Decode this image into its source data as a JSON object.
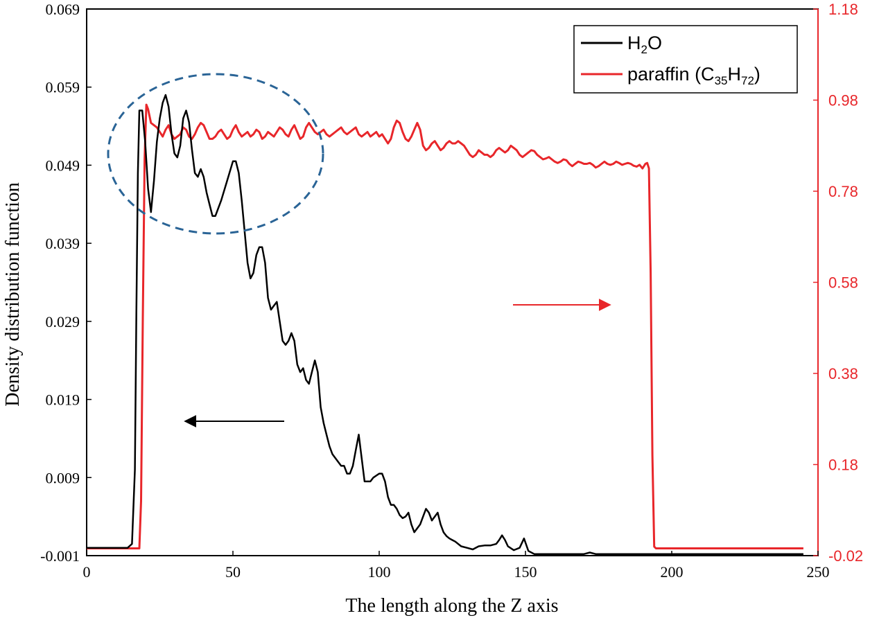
{
  "chart_data": {
    "type": "line",
    "xlabel": "The length along the Z axis",
    "ylabel": "Density distribution function",
    "xlim": [
      0,
      250
    ],
    "ylim_left": [
      -0.001,
      0.069
    ],
    "ylim_right": [
      -0.02,
      1.18
    ],
    "x_ticks": [
      "0",
      "50",
      "100",
      "150",
      "200",
      "250"
    ],
    "y_ticks_left": [
      "-0.001",
      "0.009",
      "0.019",
      "0.029",
      "0.039",
      "0.049",
      "0.059",
      "0.069"
    ],
    "y_ticks_right": [
      "-0.02",
      "0.18",
      "0.38",
      "0.58",
      "0.78",
      "0.98",
      "1.18"
    ],
    "legend": {
      "position": "top-right",
      "h2o": {
        "main1": "H",
        "sub1": "2",
        "main2": "O"
      },
      "paraffin": {
        "main1": "paraffin (C",
        "sub1": "35",
        "main2": "H",
        "sub2": "72",
        "main3": ")"
      }
    },
    "series": [
      {
        "name": "H2O",
        "axis": "left",
        "color": "#000000",
        "x": [
          0,
          5,
          10,
          14,
          15.5,
          16.5,
          17,
          17.5,
          18,
          19,
          20,
          21,
          22,
          23,
          24,
          25,
          26,
          27,
          28,
          29,
          30,
          31,
          32,
          33,
          34,
          35,
          36,
          37,
          38,
          39,
          40,
          41,
          42,
          43,
          44,
          45,
          46,
          48,
          50,
          51,
          52,
          53,
          54,
          55,
          56,
          57,
          58,
          59,
          60,
          61,
          62,
          63,
          64,
          65,
          66,
          67,
          68,
          69,
          70,
          71,
          72,
          73,
          74,
          75,
          76,
          77,
          78,
          79,
          80,
          81,
          82,
          83,
          84,
          85,
          86,
          87,
          88,
          89,
          90,
          91,
          92,
          93,
          94,
          95,
          96,
          97,
          98,
          100,
          101,
          102,
          103,
          104,
          105,
          106,
          107,
          108,
          109,
          110,
          111,
          112,
          113,
          114,
          115,
          116,
          117,
          118,
          119,
          120,
          121,
          122,
          123,
          124,
          125,
          126,
          128,
          130,
          132,
          134,
          136,
          138,
          140,
          141,
          142,
          143,
          144,
          146,
          148,
          149.5,
          151,
          153,
          156,
          160,
          165,
          170,
          172,
          174,
          180,
          190,
          200,
          210,
          220,
          230,
          245
        ],
        "values": [
          0.0,
          0.0,
          0.0,
          0.0,
          0.0005,
          0.01,
          0.03,
          0.048,
          0.056,
          0.056,
          0.052,
          0.046,
          0.043,
          0.047,
          0.052,
          0.055,
          0.057,
          0.058,
          0.0565,
          0.053,
          0.0505,
          0.05,
          0.0515,
          0.055,
          0.056,
          0.0545,
          0.051,
          0.048,
          0.0475,
          0.0485,
          0.0475,
          0.0455,
          0.044,
          0.0425,
          0.0425,
          0.0435,
          0.0445,
          0.047,
          0.0495,
          0.0495,
          0.048,
          0.0445,
          0.0405,
          0.0365,
          0.0345,
          0.0352,
          0.0375,
          0.0385,
          0.0385,
          0.0365,
          0.032,
          0.0305,
          0.031,
          0.0315,
          0.029,
          0.0265,
          0.026,
          0.0265,
          0.0275,
          0.0265,
          0.0235,
          0.0225,
          0.023,
          0.0215,
          0.021,
          0.0225,
          0.024,
          0.0225,
          0.018,
          0.016,
          0.0145,
          0.013,
          0.012,
          0.0115,
          0.011,
          0.0105,
          0.0105,
          0.0095,
          0.0095,
          0.0105,
          0.0125,
          0.0145,
          0.0115,
          0.0085,
          0.0085,
          0.0085,
          0.009,
          0.0095,
          0.0095,
          0.0085,
          0.0065,
          0.0055,
          0.0055,
          0.005,
          0.0042,
          0.0038,
          0.004,
          0.0045,
          0.003,
          0.002,
          0.0025,
          0.003,
          0.004,
          0.005,
          0.0045,
          0.0035,
          0.004,
          0.0045,
          0.003,
          0.002,
          0.0015,
          0.0012,
          0.001,
          0.0008,
          0.0002,
          0.0,
          -0.0002,
          0.0002,
          0.0003,
          0.0003,
          0.0005,
          0.001,
          0.0016,
          0.001,
          0.0002,
          -0.0003,
          0.0,
          0.0012,
          -0.0004,
          -0.0008,
          -0.0008,
          -0.0008,
          -0.0008,
          -0.0008,
          -0.0006,
          -0.0008,
          -0.0008,
          -0.0008,
          -0.0008,
          -0.0008,
          -0.0008,
          -0.0008,
          -0.0008
        ]
      },
      {
        "name": "paraffin (C35H72)",
        "axis": "right",
        "color": "#e8262a",
        "x": [
          0,
          5,
          10,
          15,
          18,
          18.6,
          19.2,
          19.8,
          20.4,
          21,
          22,
          23,
          24,
          25,
          26,
          27,
          28,
          29,
          30,
          31,
          32,
          33,
          34,
          35,
          36,
          37,
          38,
          39,
          40,
          41,
          42,
          43,
          44,
          45,
          46,
          47,
          48,
          49,
          50,
          51,
          52,
          53,
          54,
          55,
          56,
          57,
          58,
          59,
          60,
          61,
          62,
          63,
          64,
          65,
          66,
          67,
          68,
          69,
          70,
          71,
          72,
          73,
          74,
          75,
          76,
          77,
          78,
          79,
          80,
          81,
          82,
          83,
          84,
          85,
          86,
          87,
          88,
          89,
          90,
          91,
          92,
          93,
          94,
          95,
          96,
          97,
          98,
          99,
          100,
          101,
          102,
          103,
          104,
          105,
          106,
          107,
          108,
          109,
          110,
          111,
          112,
          113,
          114,
          115,
          116,
          117,
          118,
          119,
          120,
          121,
          122,
          123,
          124,
          125,
          126,
          127,
          128,
          129,
          130,
          131,
          132,
          133,
          134,
          135,
          136,
          137,
          138,
          139,
          140,
          141,
          142,
          143,
          144,
          145,
          146,
          147,
          148,
          149,
          150,
          151,
          152,
          153,
          154,
          155,
          156,
          157,
          158,
          159,
          160,
          161,
          162,
          163,
          164,
          165,
          166,
          167,
          168,
          169,
          170,
          171,
          172,
          173,
          174,
          175,
          176,
          177,
          178,
          179,
          180,
          181,
          182,
          183,
          184,
          185,
          186,
          187,
          188,
          189,
          190,
          191,
          191.6,
          192.2,
          192.8,
          193.4,
          194,
          194.6,
          195,
          200,
          210,
          220,
          230,
          240,
          245
        ],
        "values": [
          -0.004,
          -0.004,
          -0.004,
          -0.004,
          -0.004,
          0.1,
          0.5,
          0.85,
          0.97,
          0.96,
          0.93,
          0.925,
          0.92,
          0.91,
          0.9,
          0.915,
          0.925,
          0.905,
          0.895,
          0.9,
          0.905,
          0.92,
          0.915,
          0.9,
          0.895,
          0.905,
          0.92,
          0.93,
          0.925,
          0.91,
          0.895,
          0.895,
          0.9,
          0.91,
          0.915,
          0.905,
          0.895,
          0.9,
          0.915,
          0.925,
          0.91,
          0.9,
          0.905,
          0.91,
          0.9,
          0.905,
          0.915,
          0.91,
          0.895,
          0.9,
          0.91,
          0.905,
          0.9,
          0.91,
          0.92,
          0.915,
          0.905,
          0.9,
          0.915,
          0.925,
          0.91,
          0.895,
          0.9,
          0.92,
          0.93,
          0.92,
          0.91,
          0.905,
          0.91,
          0.915,
          0.905,
          0.9,
          0.905,
          0.91,
          0.915,
          0.92,
          0.91,
          0.905,
          0.91,
          0.915,
          0.92,
          0.905,
          0.9,
          0.905,
          0.91,
          0.9,
          0.905,
          0.91,
          0.9,
          0.905,
          0.895,
          0.885,
          0.895,
          0.92,
          0.935,
          0.93,
          0.91,
          0.895,
          0.89,
          0.9,
          0.915,
          0.93,
          0.915,
          0.88,
          0.87,
          0.875,
          0.885,
          0.89,
          0.88,
          0.87,
          0.875,
          0.885,
          0.89,
          0.885,
          0.885,
          0.89,
          0.885,
          0.88,
          0.87,
          0.86,
          0.855,
          0.86,
          0.87,
          0.865,
          0.86,
          0.86,
          0.855,
          0.86,
          0.87,
          0.875,
          0.87,
          0.865,
          0.87,
          0.88,
          0.875,
          0.87,
          0.86,
          0.855,
          0.86,
          0.865,
          0.87,
          0.868,
          0.86,
          0.855,
          0.85,
          0.852,
          0.855,
          0.85,
          0.845,
          0.842,
          0.845,
          0.85,
          0.848,
          0.84,
          0.835,
          0.84,
          0.845,
          0.843,
          0.84,
          0.84,
          0.842,
          0.838,
          0.832,
          0.835,
          0.84,
          0.845,
          0.84,
          0.838,
          0.84,
          0.845,
          0.842,
          0.838,
          0.84,
          0.842,
          0.84,
          0.836,
          0.834,
          0.838,
          0.83,
          0.84,
          0.842,
          0.83,
          0.6,
          0.2,
          0.0,
          -0.004,
          -0.004,
          -0.004,
          -0.004,
          -0.004,
          -0.004,
          -0.004,
          -0.004
        ]
      }
    ],
    "annotations": [
      {
        "type": "dashed-ellipse",
        "color": "#2a6496",
        "label": "highlighted H2O peak region"
      },
      {
        "type": "arrow",
        "direction": "left",
        "color": "#000000",
        "refers_to_axis": "left"
      },
      {
        "type": "arrow",
        "direction": "right",
        "color": "#e8262a",
        "refers_to_axis": "right"
      }
    ]
  }
}
